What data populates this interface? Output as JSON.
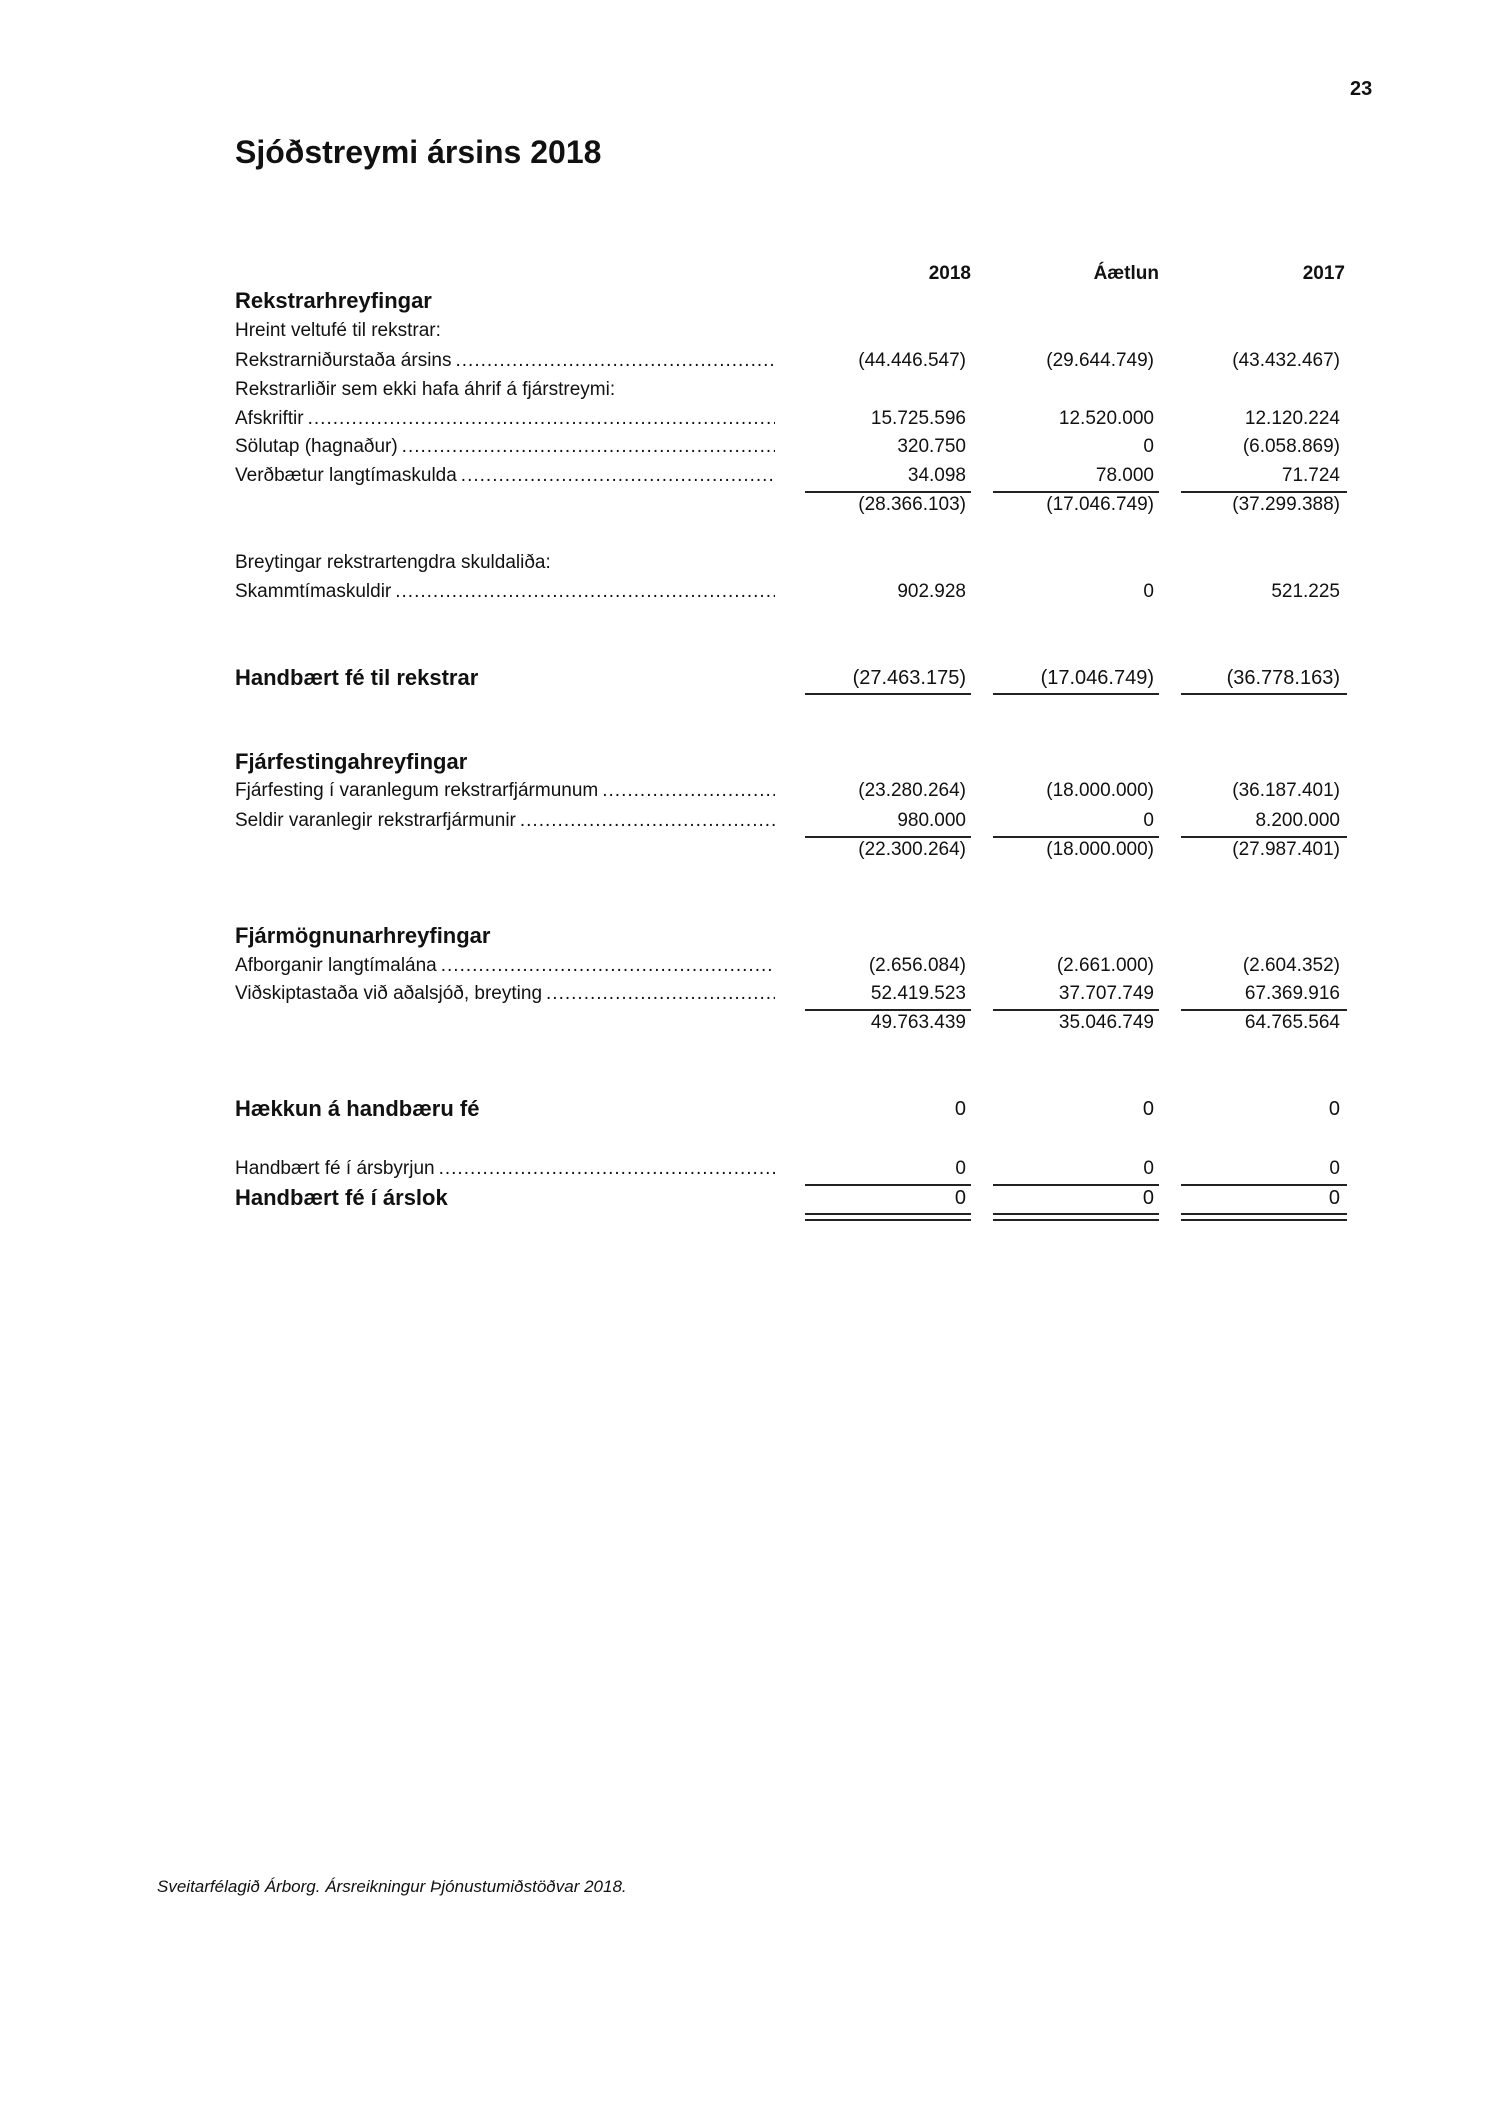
{
  "page_number": "23",
  "title": "Sjóðstreymi ársins 2018",
  "columns": [
    "2018",
    "Áætlun",
    "2017"
  ],
  "rows": [
    {
      "label": "Rekstrarhreyfingar",
      "type": "heading"
    },
    {
      "label": "Hreint veltufé til rekstrar:"
    },
    {
      "label": "Rekstrarniðurstaða ársins",
      "values": [
        "(44.446.547)",
        "(29.644.749)",
        "(43.432.467)"
      ]
    },
    {
      "label": "Rekstrarliðir sem ekki hafa áhrif á fjárstreymi:"
    },
    {
      "label": "Afskriftir",
      "values": [
        "15.725.596",
        "12.520.000",
        "12.120.224"
      ]
    },
    {
      "label": "Sölutap (hagnaður)",
      "values": [
        "320.750",
        "0",
        "(6.058.869)"
      ]
    },
    {
      "label": "Verðbætur langtímaskulda",
      "values": [
        "34.098",
        "78.000",
        "71.724"
      ]
    },
    {
      "values": [
        "(28.366.103)",
        "(17.046.749)",
        "(37.299.388)"
      ]
    },
    {
      "label": "Breytingar rekstrartengdra skuldaliða:"
    },
    {
      "label": "Skammtímaskuldir",
      "values": [
        "902.928",
        "0",
        "521.225"
      ]
    },
    {
      "label": "Handbært fé til rekstrar",
      "type": "heading",
      "values": [
        "(27.463.175)",
        "(17.046.749)",
        "(36.778.163)"
      ]
    },
    {
      "label": "Fjárfestingahreyfingar",
      "type": "heading"
    },
    {
      "label": "Fjárfesting í varanlegum rekstrarfjármunum",
      "values": [
        "(23.280.264)",
        "(18.000.000)",
        "(36.187.401)"
      ]
    },
    {
      "label": "Seldir varanlegir rekstrarfjármunir",
      "values": [
        "980.000",
        "0",
        "8.200.000"
      ]
    },
    {
      "values": [
        "(22.300.264)",
        "(18.000.000)",
        "(27.987.401)"
      ]
    },
    {
      "label": "Fjármögnunarhreyfingar",
      "type": "heading"
    },
    {
      "label": "Afborganir langtímalána",
      "values": [
        "(2.656.084)",
        "(2.661.000)",
        "(2.604.352)"
      ]
    },
    {
      "label": "Viðskiptastaða við aðalsjóð, breyting",
      "values": [
        "52.419.523",
        "37.707.749",
        "67.369.916"
      ]
    },
    {
      "values": [
        "49.763.439",
        "35.046.749",
        "64.765.564"
      ]
    },
    {
      "label": "Hækkun á handbæru fé",
      "type": "heading",
      "values": [
        "0",
        "0",
        "0"
      ]
    },
    {
      "label": "Handbært fé í ársbyrjun",
      "values": [
        "0",
        "0",
        "0"
      ]
    },
    {
      "label": "Handbært fé í árslok",
      "type": "heading",
      "values": [
        "0",
        "0",
        "0"
      ]
    }
  ],
  "footer": "Sveitarfélagið Árborg. Ársreikningur Þjónustumiðstöðvar 2018."
}
